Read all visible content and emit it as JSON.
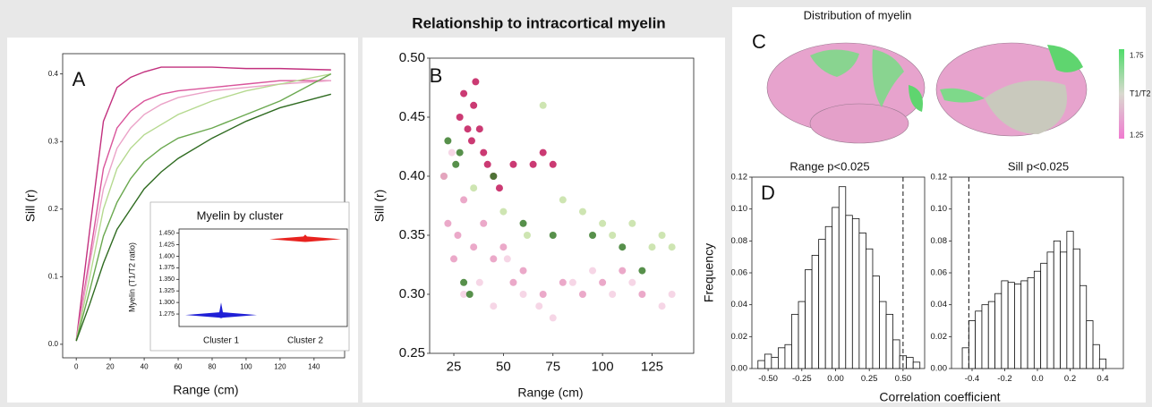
{
  "title": "Relationship to intracortical myelin",
  "chart_data": [
    {
      "type": "line",
      "panel_label": "A",
      "xlabel": "Range (cm)",
      "ylabel": "Sill (r)",
      "x": [
        0,
        8,
        16,
        24,
        32,
        40,
        50,
        60,
        80,
        100,
        120,
        150
      ],
      "xlim": [
        -8,
        158
      ],
      "xticks": [
        0,
        20,
        40,
        60,
        80,
        100,
        120,
        140
      ],
      "ylim": [
        -0.02,
        0.43
      ],
      "yticks": [
        {
          "value": 0,
          "label": "0.0"
        },
        0.1,
        0.2,
        0.3,
        0.4
      ],
      "series": [
        {
          "color": "#c2307e",
          "values": [
            0.005,
            0.17,
            0.33,
            0.38,
            0.395,
            0.403,
            0.41,
            0.41,
            0.41,
            0.408,
            0.408,
            0.406
          ]
        },
        {
          "color": "#d9559b",
          "values": [
            0.005,
            0.13,
            0.26,
            0.32,
            0.345,
            0.36,
            0.37,
            0.375,
            0.38,
            0.385,
            0.39,
            0.39
          ]
        },
        {
          "color": "#eba3c8",
          "values": [
            0.005,
            0.12,
            0.23,
            0.29,
            0.32,
            0.34,
            0.355,
            0.365,
            0.375,
            0.38,
            0.385,
            0.39
          ]
        },
        {
          "color": "#b5d98f",
          "values": [
            0.005,
            0.1,
            0.2,
            0.26,
            0.29,
            0.31,
            0.325,
            0.34,
            0.36,
            0.375,
            0.385,
            0.4
          ]
        },
        {
          "color": "#6aa84f",
          "values": [
            0.005,
            0.08,
            0.16,
            0.21,
            0.245,
            0.27,
            0.29,
            0.305,
            0.32,
            0.34,
            0.36,
            0.4
          ]
        },
        {
          "color": "#2f6b21",
          "values": [
            0.005,
            0.06,
            0.12,
            0.17,
            0.2,
            0.23,
            0.255,
            0.275,
            0.305,
            0.33,
            0.35,
            0.37
          ]
        }
      ]
    },
    {
      "type": "violin",
      "title": "Myelin by cluster",
      "ylabel": "Myelin (T1/T2 ratio)",
      "categories": [
        "Cluster 1",
        "Cluster 2"
      ],
      "values": [
        1.273,
        1.437
      ],
      "min": [
        1.266,
        1.431
      ],
      "max": [
        1.3,
        1.447
      ],
      "colors": [
        "#1f1fd6",
        "#e8231f"
      ],
      "ylim": [
        1.248,
        1.459
      ],
      "yticks": [
        1.275,
        {
          "value": 1.3,
          "label": "1.300"
        },
        1.325,
        {
          "value": 1.35,
          "label": "1.350"
        },
        1.375,
        {
          "value": 1.4,
          "label": "1.400"
        },
        1.425,
        {
          "value": 1.45,
          "label": "1.450"
        }
      ]
    },
    {
      "type": "scatter",
      "panel_label": "B",
      "xlabel": "Range (cm)",
      "ylabel": "Sill (r)",
      "xlim": [
        12.8,
        146
      ],
      "xticks": [
        25,
        50,
        75,
        100,
        125
      ],
      "ylim": [
        0.25,
        0.5
      ],
      "yticks": [
        0.25,
        {
          "value": 0.3,
          "label": "0.30"
        },
        0.35,
        {
          "value": 0.4,
          "label": "0.40"
        },
        0.45,
        {
          "value": 0.5,
          "label": "0.50"
        }
      ],
      "series": [
        {
          "color": "#f5cfe2",
          "x": [
            24,
            30,
            38,
            45,
            52,
            60,
            68,
            75,
            85,
            95,
            105,
            115,
            130,
            135
          ],
          "values": [
            0.42,
            0.3,
            0.31,
            0.29,
            0.33,
            0.3,
            0.29,
            0.28,
            0.31,
            0.32,
            0.3,
            0.31,
            0.29,
            0.3
          ]
        },
        {
          "color": "#c5e0a5",
          "x": [
            20,
            35,
            50,
            62,
            70,
            80,
            90,
            100,
            105,
            115,
            125,
            130,
            135
          ],
          "values": [
            0.4,
            0.39,
            0.37,
            0.35,
            0.46,
            0.38,
            0.37,
            0.36,
            0.35,
            0.36,
            0.34,
            0.35,
            0.34
          ]
        },
        {
          "color": "#e89ac0",
          "x": [
            20,
            22,
            25,
            27,
            30,
            35,
            40,
            45,
            50,
            55,
            60,
            70,
            80,
            90,
            100,
            110,
            120
          ],
          "values": [
            0.4,
            0.36,
            0.33,
            0.35,
            0.38,
            0.34,
            0.36,
            0.33,
            0.34,
            0.31,
            0.32,
            0.3,
            0.31,
            0.3,
            0.31,
            0.32,
            0.3
          ]
        },
        {
          "color": "#c2185b",
          "x": [
            28,
            30,
            32,
            34,
            35,
            36,
            38,
            40,
            42,
            45,
            48,
            55,
            65,
            70,
            75
          ],
          "values": [
            0.45,
            0.47,
            0.44,
            0.43,
            0.46,
            0.48,
            0.44,
            0.42,
            0.41,
            0.4,
            0.39,
            0.41,
            0.41,
            0.42,
            0.41
          ]
        },
        {
          "color": "#3a7d2c",
          "x": [
            22,
            26,
            28,
            30,
            33,
            45,
            60,
            75,
            95,
            110,
            120
          ],
          "values": [
            0.43,
            0.41,
            0.42,
            0.31,
            0.3,
            0.4,
            0.36,
            0.35,
            0.35,
            0.34,
            0.32
          ]
        }
      ]
    },
    {
      "type": "image",
      "panel_label": "C",
      "title": "Distribution of myelin",
      "colorbar_label": "T1/T2",
      "clim": [
        1.23,
        1.79
      ],
      "colorbar_ticks": [
        1.75,
        1.25
      ]
    },
    {
      "type": "histogram",
      "panel_label": "D",
      "title": "Range p<0.025",
      "ylabel": "Frequency",
      "xlabel": "Correlation coefficient",
      "bins": [
        -0.575,
        -0.525,
        -0.475,
        -0.425,
        -0.375,
        -0.325,
        -0.275,
        -0.225,
        -0.175,
        -0.125,
        -0.075,
        -0.025,
        0.025,
        0.075,
        0.125,
        0.175,
        0.225,
        0.275,
        0.325,
        0.375,
        0.425,
        0.475,
        0.525,
        0.575,
        0.625
      ],
      "values": [
        0.005,
        0.009,
        0.007,
        0.013,
        0.015,
        0.034,
        0.042,
        0.062,
        0.071,
        0.081,
        0.089,
        0.101,
        0.114,
        0.096,
        0.094,
        0.085,
        0.075,
        0.058,
        0.042,
        0.034,
        0.018,
        0.008,
        0.007,
        0.004
      ],
      "threshold": 0.5,
      "xlim": [
        -0.62,
        0.66
      ],
      "xticks": [
        {
          "value": -0.5,
          "label": "-0.50"
        },
        -0.25,
        {
          "value": 0,
          "label": "0.00"
        },
        0.25,
        {
          "value": 0.5,
          "label": "0.50"
        }
      ],
      "ylim": [
        0,
        0.12
      ],
      "yticks": [
        {
          "value": 0,
          "label": "0.00"
        },
        0.02,
        0.04,
        0.06,
        0.08,
        {
          "value": 0.1,
          "label": "0.10"
        },
        0.12
      ]
    },
    {
      "type": "histogram",
      "title": "Sill p<0.025",
      "bins": [
        -0.46,
        -0.42,
        -0.38,
        -0.34,
        -0.3,
        -0.26,
        -0.22,
        -0.18,
        -0.14,
        -0.1,
        -0.06,
        -0.02,
        0.02,
        0.06,
        0.1,
        0.14,
        0.18,
        0.22,
        0.26,
        0.3,
        0.34,
        0.38,
        0.42
      ],
      "values": [
        0.013,
        0.03,
        0.036,
        0.04,
        0.042,
        0.047,
        0.055,
        0.054,
        0.053,
        0.055,
        0.057,
        0.061,
        0.066,
        0.073,
        0.08,
        0.073,
        0.086,
        0.075,
        0.052,
        0.03,
        0.015,
        0.006
      ],
      "threshold": -0.42,
      "xlim": [
        -0.526,
        0.526
      ],
      "xticks": [
        -0.4,
        -0.2,
        {
          "value": 0,
          "label": "0.0"
        },
        0.2,
        0.4
      ],
      "ylim": [
        0,
        0.12
      ],
      "yticks": [
        {
          "value": 0,
          "label": "0.00"
        },
        0.02,
        0.04,
        0.06,
        0.08,
        {
          "value": 0.1,
          "label": "0.10"
        },
        0.12
      ]
    }
  ]
}
